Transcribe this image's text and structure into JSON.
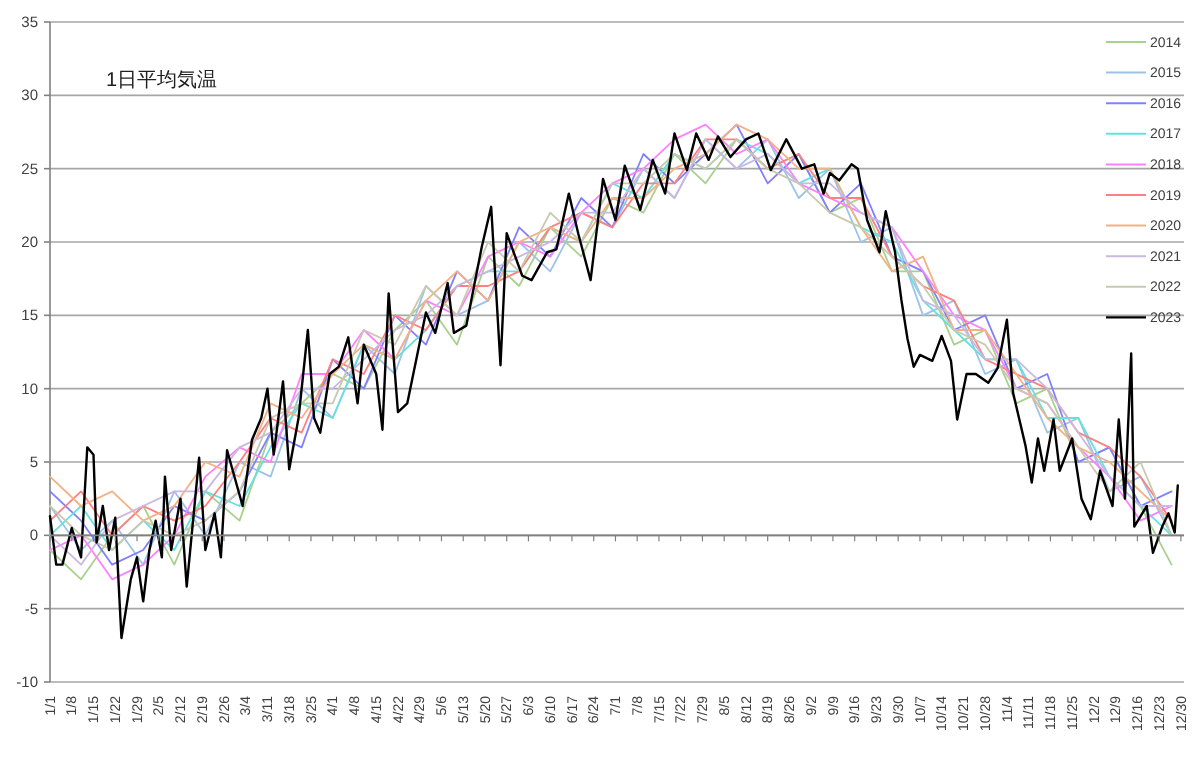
{
  "chart_data": {
    "type": "line",
    "title": "1日平均気温",
    "ylim": [
      -10,
      35
    ],
    "yticks": [
      -10,
      -5,
      0,
      5,
      10,
      15,
      20,
      25,
      30,
      35
    ],
    "grid": "y",
    "legend": "top right",
    "marker": "none",
    "line_style": "solid",
    "xlim": [
      "--01-01",
      "--12-31"
    ],
    "xticks": [
      {
        "value": "--01-01",
        "label": "1/1"
      },
      {
        "value": "--01-08",
        "label": "1/8"
      },
      {
        "value": "--01-15",
        "label": "1/15"
      },
      {
        "value": "--01-22",
        "label": "1/22"
      },
      {
        "value": "--01-29",
        "label": "1/29"
      },
      {
        "value": "--02-05",
        "label": "2/5"
      },
      {
        "value": "--02-12",
        "label": "2/12"
      },
      {
        "value": "--02-19",
        "label": "2/19"
      },
      {
        "value": "--02-26",
        "label": "2/26"
      },
      {
        "value": "--03-04",
        "label": "3/4"
      },
      {
        "value": "--03-11",
        "label": "3/11"
      },
      {
        "value": "--03-18",
        "label": "3/18"
      },
      {
        "value": "--03-25",
        "label": "3/25"
      },
      {
        "value": "--04-01",
        "label": "4/1"
      },
      {
        "value": "--04-08",
        "label": "4/8"
      },
      {
        "value": "--04-15",
        "label": "4/15"
      },
      {
        "value": "--04-22",
        "label": "4/22"
      },
      {
        "value": "--04-29",
        "label": "4/29"
      },
      {
        "value": "--05-06",
        "label": "5/6"
      },
      {
        "value": "--05-13",
        "label": "5/13"
      },
      {
        "value": "--05-20",
        "label": "5/20"
      },
      {
        "value": "--05-27",
        "label": "5/27"
      },
      {
        "value": "--06-03",
        "label": "6/3"
      },
      {
        "value": "--06-10",
        "label": "6/10"
      },
      {
        "value": "--06-17",
        "label": "6/17"
      },
      {
        "value": "--06-24",
        "label": "6/24"
      },
      {
        "value": "--07-01",
        "label": "7/1"
      },
      {
        "value": "--07-08",
        "label": "7/8"
      },
      {
        "value": "--07-15",
        "label": "7/15"
      },
      {
        "value": "--07-22",
        "label": "7/22"
      },
      {
        "value": "--07-29",
        "label": "7/29"
      },
      {
        "value": "--08-05",
        "label": "8/5"
      },
      {
        "value": "--08-12",
        "label": "8/12"
      },
      {
        "value": "--08-19",
        "label": "8/19"
      },
      {
        "value": "--08-26",
        "label": "8/26"
      },
      {
        "value": "--09-02",
        "label": "9/2"
      },
      {
        "value": "--09-09",
        "label": "9/9"
      },
      {
        "value": "--09-16",
        "label": "9/16"
      },
      {
        "value": "--09-23",
        "label": "9/23"
      },
      {
        "value": "--09-30",
        "label": "9/30"
      },
      {
        "value": "--10-07",
        "label": "10/7"
      },
      {
        "value": "--10-14",
        "label": "10/14"
      },
      {
        "value": "--10-21",
        "label": "10/21"
      },
      {
        "value": "--10-28",
        "label": "10/28"
      },
      {
        "value": "--11-04",
        "label": "11/4"
      },
      {
        "value": "--11-11",
        "label": "11/11"
      },
      {
        "value": "--11-18",
        "label": "11/18"
      },
      {
        "value": "--11-25",
        "label": "11/25"
      },
      {
        "value": "--12-02",
        "label": "12/2"
      },
      {
        "value": "--12-09",
        "label": "12/9"
      },
      {
        "value": "--12-16",
        "label": "12/16"
      },
      {
        "value": "--12-23",
        "label": "12/23"
      },
      {
        "value": "--12-30",
        "label": "12/30"
      }
    ],
    "x": [
      "--01-01",
      "--01-11",
      "--01-21",
      "--01-31",
      "--02-10",
      "--02-20",
      "--03-02",
      "--03-12",
      "--03-22",
      "--04-01",
      "--04-11",
      "--04-21",
      "--05-01",
      "--05-11",
      "--05-21",
      "--05-31",
      "--06-10",
      "--06-20",
      "--06-30",
      "--07-10",
      "--07-20",
      "--07-30",
      "--08-09",
      "--08-19",
      "--08-29",
      "--09-08",
      "--09-18",
      "--09-28",
      "--10-08",
      "--10-18",
      "--10-28",
      "--11-07",
      "--11-17",
      "--11-27",
      "--12-07",
      "--12-17",
      "--12-27"
    ],
    "series": [
      {
        "name": "2014",
        "color": "#a9d18e",
        "values": [
          -1,
          -3,
          0,
          2,
          -2,
          3,
          1,
          7,
          9,
          11,
          10,
          14,
          16,
          13,
          19,
          17,
          21,
          19,
          23,
          22,
          26,
          24,
          27,
          25,
          26,
          22,
          23,
          18,
          18,
          13,
          14,
          9,
          10,
          5,
          6,
          2,
          -2
        ]
      },
      {
        "name": "2015",
        "color": "#9dc3e6",
        "values": [
          2,
          -1,
          1,
          -2,
          3,
          0,
          5,
          4,
          10,
          8,
          13,
          11,
          17,
          15,
          16,
          20,
          18,
          22,
          21,
          25,
          23,
          27,
          25,
          27,
          23,
          25,
          20,
          21,
          15,
          16,
          11,
          12,
          7,
          8,
          3,
          4,
          0
        ]
      },
      {
        "name": "2016",
        "color": "#8080ff",
        "values": [
          3,
          1,
          -2,
          -1,
          2,
          1,
          3,
          7,
          6,
          12,
          10,
          15,
          13,
          18,
          16,
          21,
          19,
          23,
          21,
          26,
          24,
          26,
          28,
          24,
          26,
          22,
          24,
          19,
          18,
          14,
          15,
          10,
          11,
          5,
          6,
          2,
          3
        ]
      },
      {
        "name": "2017",
        "color": "#66e0e0",
        "values": [
          0,
          2,
          -1,
          1,
          -1,
          3,
          2,
          6,
          9,
          8,
          13,
          12,
          14,
          17,
          18,
          18,
          21,
          20,
          24,
          23,
          26,
          25,
          27,
          26,
          24,
          25,
          21,
          20,
          16,
          14,
          12,
          12,
          8,
          8,
          4,
          2,
          0
        ]
      },
      {
        "name": "2018",
        "color": "#ff80ff",
        "values": [
          -1,
          0,
          -3,
          -2,
          0,
          4,
          6,
          5,
          11,
          11,
          14,
          12,
          16,
          15,
          19,
          20,
          19,
          22,
          24,
          25,
          27,
          28,
          26,
          27,
          24,
          23,
          22,
          21,
          18,
          15,
          14,
          10,
          9,
          6,
          4,
          1,
          2
        ]
      },
      {
        "name": "2019",
        "color": "#ff8080",
        "values": [
          1,
          3,
          0,
          2,
          1,
          2,
          5,
          8,
          7,
          12,
          11,
          15,
          14,
          17,
          17,
          18,
          21,
          22,
          21,
          24,
          24,
          27,
          27,
          25,
          26,
          23,
          23,
          19,
          17,
          16,
          12,
          11,
          10,
          7,
          6,
          4,
          1
        ]
      },
      {
        "name": "2020",
        "color": "#f4b183",
        "values": [
          4,
          2,
          3,
          1,
          2,
          5,
          4,
          9,
          8,
          11,
          13,
          12,
          16,
          18,
          16,
          20,
          21,
          20,
          23,
          23,
          25,
          26,
          28,
          27,
          25,
          25,
          21,
          18,
          19,
          14,
          14,
          11,
          8,
          6,
          5,
          3,
          1
        ]
      },
      {
        "name": "2021",
        "color": "#c9b8e0",
        "values": [
          0,
          -2,
          1,
          2,
          3,
          3,
          6,
          7,
          10,
          10,
          12,
          14,
          15,
          17,
          18,
          19,
          20,
          22,
          22,
          25,
          23,
          27,
          25,
          26,
          24,
          24,
          22,
          21,
          16,
          15,
          12,
          12,
          10,
          7,
          4,
          2,
          2
        ]
      },
      {
        "name": "2022",
        "color": "#c9c9b0",
        "values": [
          2,
          0,
          -1,
          1,
          0,
          1,
          3,
          8,
          9,
          9,
          14,
          13,
          17,
          15,
          20,
          18,
          22,
          20,
          24,
          24,
          26,
          25,
          27,
          25,
          24,
          22,
          21,
          19,
          17,
          14,
          13,
          10,
          9,
          6,
          3,
          5,
          0
        ]
      },
      {
        "name": "2023",
        "color": "#000000",
        "x": [
          "--01-01",
          "--01-03",
          "--01-05",
          "--01-08",
          "--01-11",
          "--01-13",
          "--01-15",
          "--01-16",
          "--01-18",
          "--01-20",
          "--01-22",
          "--01-24",
          "--01-27",
          "--01-29",
          "--01-31",
          "--02-02",
          "--02-04",
          "--02-06",
          "--02-07",
          "--02-09",
          "--02-12",
          "--02-14",
          "--02-18",
          "--02-20",
          "--02-23",
          "--02-25",
          "--02-27",
          "--03-03",
          "--03-06",
          "--03-09",
          "--03-11",
          "--03-13",
          "--03-16",
          "--03-18",
          "--03-21",
          "--03-24",
          "--03-26",
          "--03-28",
          "--03-31",
          "--04-03",
          "--04-06",
          "--04-09",
          "--04-11",
          "--04-15",
          "--04-17",
          "--04-19",
          "--04-22",
          "--04-25",
          "--05-01",
          "--05-04",
          "--05-08",
          "--05-10",
          "--05-14",
          "--05-19",
          "--05-22",
          "--05-25",
          "--05-27",
          "--06-01",
          "--06-04",
          "--06-09",
          "--06-12",
          "--06-16",
          "--06-19",
          "--06-23",
          "--06-27",
          "--07-01",
          "--07-04",
          "--07-09",
          "--07-13",
          "--07-17",
          "--07-20",
          "--07-24",
          "--07-27",
          "--07-31",
          "--08-03",
          "--08-07",
          "--08-12",
          "--08-16",
          "--08-20",
          "--08-25",
          "--08-30",
          "--09-03",
          "--09-06",
          "--09-08",
          "--09-11",
          "--09-15",
          "--09-17",
          "--09-20",
          "--09-24",
          "--09-26",
          "--09-29",
          "--10-01",
          "--10-03",
          "--10-05",
          "--10-07",
          "--10-11",
          "--10-14",
          "--10-17",
          "--10-19",
          "--10-22",
          "--10-25",
          "--10-29",
          "--11-01",
          "--11-04",
          "--11-06",
          "--11-10",
          "--11-12",
          "--11-14",
          "--11-16",
          "--11-19",
          "--11-21",
          "--11-25",
          "--11-28",
          "--12-01",
          "--12-04",
          "--12-08",
          "--12-10",
          "--12-12",
          "--12-14",
          "--12-15",
          "--12-19",
          "--12-21",
          "--12-24",
          "--12-26",
          "--12-28",
          "--12-29"
        ],
        "values": [
          1.3,
          -2,
          -2,
          0.5,
          -1.5,
          6,
          5.5,
          -0.5,
          2,
          -1,
          1.2,
          -7,
          -3,
          -1.5,
          -4.5,
          -1,
          1,
          -1.5,
          4,
          -1,
          2.5,
          -3.5,
          5.3,
          -1,
          1.5,
          -1.5,
          5.8,
          2,
          6.5,
          8,
          10,
          5.5,
          10.5,
          4.5,
          8,
          14,
          8,
          7,
          11,
          11.5,
          13.5,
          9,
          13,
          11,
          7.2,
          16.5,
          8.4,
          9,
          15.2,
          13.8,
          17.2,
          13.8,
          14.3,
          19.7,
          22.4,
          11.6,
          20.6,
          17.7,
          17.4,
          19.3,
          19.5,
          23.3,
          20.6,
          17.4,
          24.3,
          21.5,
          25.2,
          22.2,
          25.6,
          23.3,
          27.4,
          24.9,
          27.4,
          25.6,
          27.2,
          25.8,
          27,
          27.4,
          24.9,
          27,
          25,
          25.3,
          23.3,
          24.7,
          24.2,
          25.3,
          25,
          21.5,
          19.3,
          22.1,
          19.3,
          16.1,
          13.4,
          11.5,
          12.3,
          11.9,
          13.6,
          11.9,
          7.9,
          11,
          11,
          10.4,
          11.4,
          14.7,
          9.7,
          6.1,
          3.6,
          6.6,
          4.4,
          7.9,
          4.4,
          6.6,
          2.5,
          1.1,
          4.4,
          2,
          7.9,
          2.5,
          12.4,
          0.6,
          2,
          -1.2,
          0.6,
          1.5,
          0.2,
          3.4
        ]
      }
    ]
  }
}
